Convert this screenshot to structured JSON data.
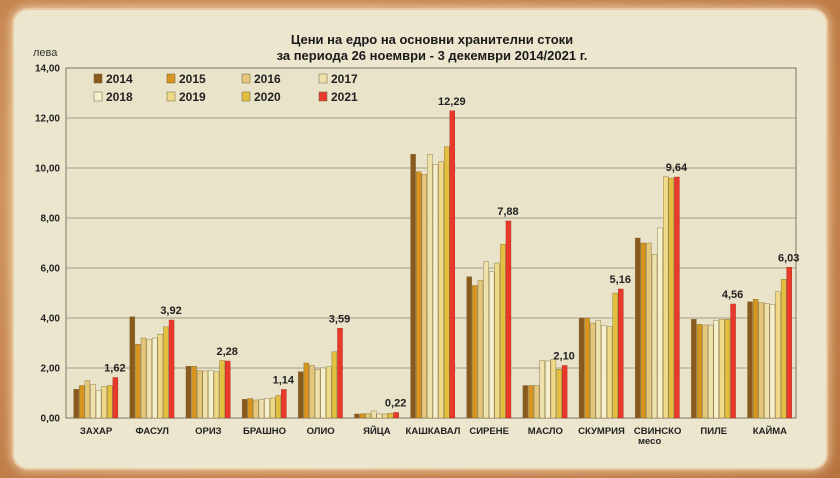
{
  "chart_data": {
    "type": "bar",
    "title_line1": "Цени на едро на основни хранителни стоки",
    "title_line2": "за периода 26 ноември - 3 декември 2014/2021 г.",
    "ylabel": "лева",
    "ylim": [
      0,
      14
    ],
    "yticks": [
      "0,00",
      "2,00",
      "4,00",
      "6,00",
      "8,00",
      "10,00",
      "12,00",
      "14,00"
    ],
    "grid": true,
    "legend_position": "top-left",
    "categories": [
      "ЗАХАР",
      "ФАСУЛ",
      "ОРИЗ",
      "БРАШНО",
      "ОЛИО",
      "ЯЙЦА",
      "КАШКАВАЛ",
      "СИРЕНЕ",
      "МАСЛО",
      "СКУМРИЯ",
      "СВИНСКО",
      "ПИЛЕ",
      "КАЙМА"
    ],
    "category_sublabels": [
      "",
      "",
      "",
      "",
      "",
      "",
      "",
      "",
      "",
      "",
      "месо",
      "",
      ""
    ],
    "series": [
      {
        "name": "2014",
        "color": "#8a5a1c",
        "values": [
          1.15,
          4.05,
          2.07,
          0.75,
          1.85,
          0.16,
          10.55,
          5.65,
          1.3,
          4.0,
          7.2,
          3.95,
          4.65
        ]
      },
      {
        "name": "2015",
        "color": "#d7941e",
        "values": [
          1.3,
          2.95,
          2.07,
          0.78,
          2.2,
          0.17,
          9.85,
          5.3,
          1.3,
          4.0,
          7.0,
          3.75,
          4.75
        ]
      },
      {
        "name": "2016",
        "color": "#e4c77a",
        "values": [
          1.5,
          3.2,
          1.9,
          0.72,
          2.1,
          0.18,
          9.75,
          5.5,
          1.3,
          3.8,
          7.0,
          3.72,
          4.62
        ]
      },
      {
        "name": "2017",
        "color": "#efe1ab",
        "values": [
          1.35,
          3.15,
          1.88,
          0.75,
          1.95,
          0.28,
          10.55,
          6.25,
          2.3,
          3.9,
          6.55,
          3.72,
          4.58
        ]
      },
      {
        "name": "2018",
        "color": "#f5efcb",
        "values": [
          1.1,
          3.2,
          1.9,
          0.78,
          2.0,
          0.16,
          10.15,
          5.85,
          2.28,
          3.7,
          7.6,
          3.9,
          4.55
        ]
      },
      {
        "name": "2019",
        "color": "#f0d986",
        "values": [
          1.25,
          3.35,
          1.85,
          0.8,
          2.05,
          0.16,
          10.25,
          6.2,
          2.35,
          3.65,
          9.65,
          3.95,
          5.05
        ]
      },
      {
        "name": "2020",
        "color": "#e3bf3e",
        "values": [
          1.3,
          3.65,
          2.3,
          0.9,
          2.65,
          0.19,
          10.85,
          6.95,
          1.95,
          5.0,
          9.6,
          3.95,
          5.55
        ]
      },
      {
        "name": "2021",
        "color": "#e8392a",
        "values": [
          1.62,
          3.92,
          2.28,
          1.14,
          3.59,
          0.22,
          12.29,
          7.88,
          2.1,
          5.16,
          9.64,
          4.56,
          6.03
        ]
      }
    ],
    "data_labels_2021": [
      "1,62",
      "3,92",
      "2,28",
      "1,14",
      "3,59",
      "0,22",
      "12,29",
      "7,88",
      "2,10",
      "5,16",
      "9,64",
      "4,56",
      "6,03"
    ]
  }
}
